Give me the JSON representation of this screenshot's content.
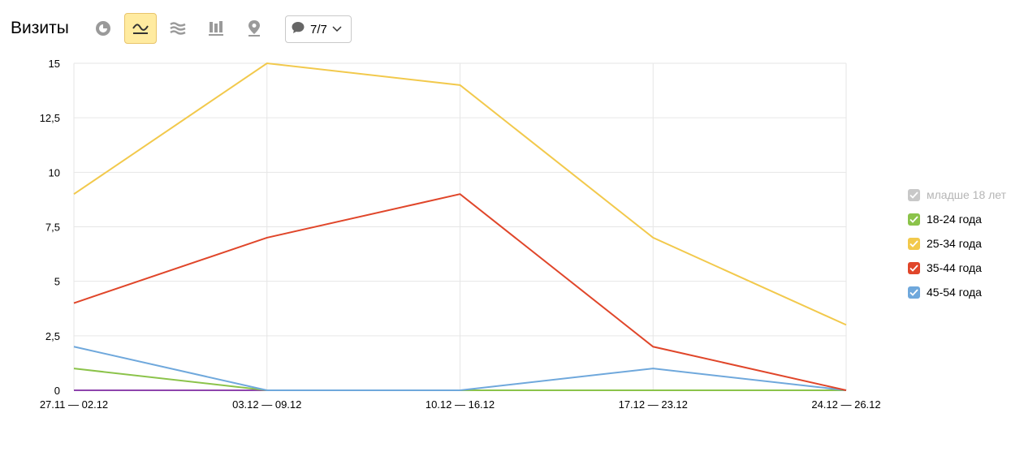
{
  "toolbar": {
    "title": "Визиты",
    "segments_label": "7/7"
  },
  "colors": {
    "active_button_bg": "#ffeba0",
    "grid": "#e6e6e6",
    "icon": "#9a9a9a"
  },
  "icons": [
    "pie-chart-icon",
    "line-chart-icon",
    "area-chart-icon",
    "stacked-bar-chart-icon",
    "map-pin-icon",
    "speech-bubble-icon",
    "chevron-down-icon"
  ],
  "chart_data": {
    "type": "line",
    "title": "",
    "xlabel": "",
    "ylabel": "",
    "categories": [
      "27.11 — 02.12",
      "03.12 — 09.12",
      "10.12 — 16.12",
      "17.12 — 23.12",
      "24.12 — 26.12"
    ],
    "ylim": [
      0,
      15
    ],
    "yticks": [
      0,
      2.5,
      5,
      7.5,
      10,
      12.5,
      15
    ],
    "ytick_labels": [
      "0",
      "2,5",
      "5",
      "7,5",
      "10",
      "12,5",
      "15"
    ],
    "grid": true,
    "legend_position": "right",
    "series": [
      {
        "name": "25-34 года",
        "color": "#f2c94c",
        "values": [
          9,
          15,
          14,
          7,
          3
        ],
        "checked": true
      },
      {
        "name": "35-44 года",
        "color": "#e0462a",
        "values": [
          4,
          7,
          9,
          2,
          0
        ],
        "checked": true
      },
      {
        "name": "45-54 года",
        "color": "#6fa8dc",
        "values": [
          2,
          0,
          0,
          1,
          0
        ],
        "checked": true
      },
      {
        "name": "18-24 года",
        "color": "#8bc34a",
        "values": [
          1,
          0,
          0,
          0,
          0
        ],
        "checked": true
      },
      {
        "name": "",
        "color": "#8e44ad",
        "values": [
          0,
          0,
          0,
          0,
          0
        ],
        "checked": true
      }
    ],
    "legend": [
      {
        "label": "младше 18 лет",
        "color": "#c8c8c8",
        "checked": false
      },
      {
        "label": "18-24 года",
        "color": "#8bc34a",
        "checked": true
      },
      {
        "label": "25-34 года",
        "color": "#f2c94c",
        "checked": true
      },
      {
        "label": "35-44 года",
        "color": "#e0462a",
        "checked": true
      },
      {
        "label": "45-54 года",
        "color": "#6fa8dc",
        "checked": true
      }
    ]
  }
}
